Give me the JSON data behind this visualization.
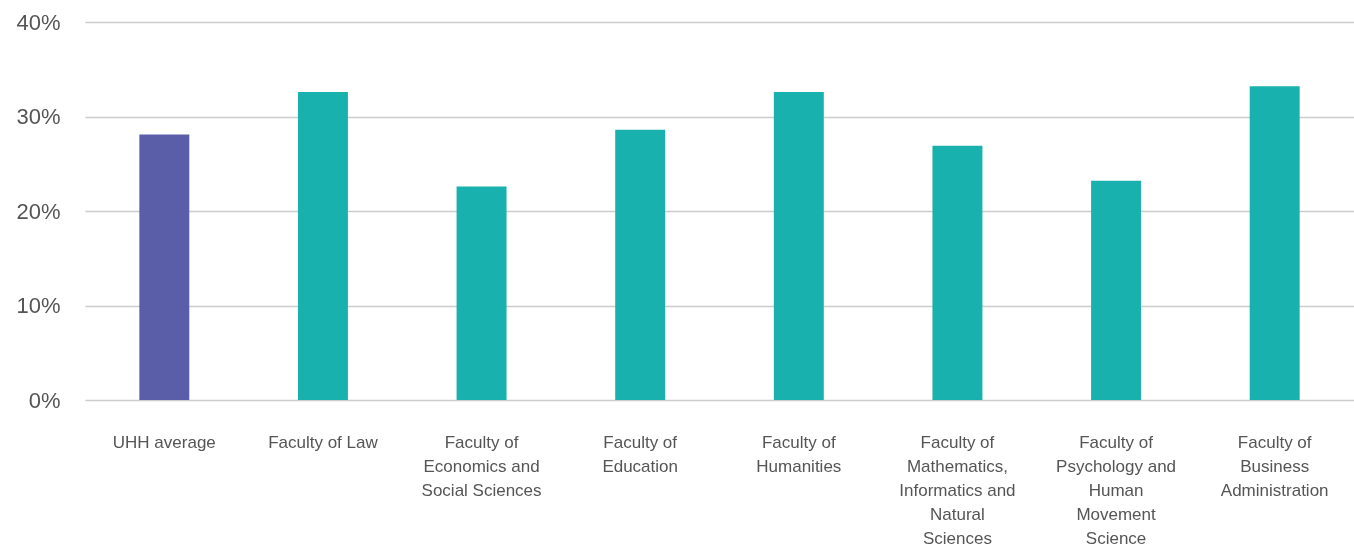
{
  "chart_data": {
    "type": "bar",
    "categories": [
      "UHH average",
      "Faculty of Law",
      "Faculty of Economics and Social Sciences",
      "Faculty of Education",
      "Faculty of Humanities",
      "Faculty of Mathematics, Informatics and Natural Sciences",
      "Faculty of Psychology and Human Movement Science",
      "Faculty of Business Administration"
    ],
    "values": [
      28.1,
      32.6,
      22.6,
      28.6,
      32.6,
      26.9,
      23.2,
      33.2
    ],
    "colors": [
      "#5a5ea9",
      "#19b1ad",
      "#19b1ad",
      "#19b1ad",
      "#19b1ad",
      "#19b1ad",
      "#19b1ad",
      "#19b1ad"
    ],
    "ylim": [
      0,
      40
    ],
    "yticks": [
      {
        "value": 0,
        "label": "0%"
      },
      {
        "value": 10,
        "label": "10%"
      },
      {
        "value": 20,
        "label": "20%"
      },
      {
        "value": 30,
        "label": "30%"
      },
      {
        "value": 40,
        "label": "40%"
      }
    ],
    "grid": "y"
  }
}
